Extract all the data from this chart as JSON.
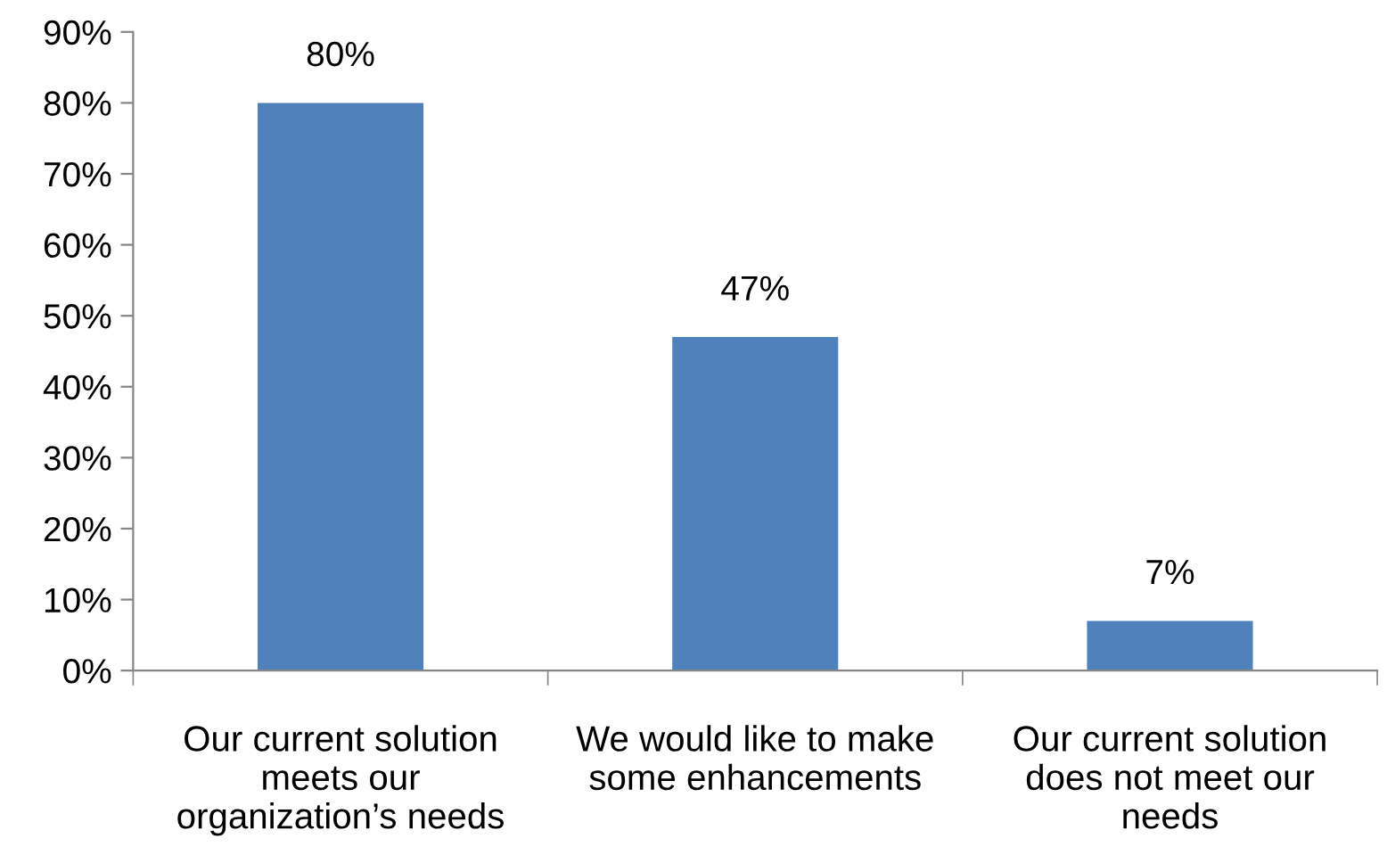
{
  "chart_data": {
    "type": "bar",
    "categories": [
      "Our current solution\nmeets our\norganization’s needs",
      "We would like to make\nsome enhancements",
      "Our current solution\ndoes not meet our\nneeds"
    ],
    "values": [
      80,
      47,
      7
    ],
    "color": "#4f81bd",
    "ylim": [
      0,
      90
    ],
    "yticks": [
      {
        "value": 0,
        "label": "0%"
      },
      {
        "value": 10,
        "label": "10%"
      },
      {
        "value": 20,
        "label": "20%"
      },
      {
        "value": 30,
        "label": "30%"
      },
      {
        "value": 40,
        "label": "40%"
      },
      {
        "value": 50,
        "label": "50%"
      },
      {
        "value": 60,
        "label": "60%"
      },
      {
        "value": 70,
        "label": "70%"
      },
      {
        "value": 80,
        "label": "80%"
      },
      {
        "value": 90,
        "label": "90%"
      }
    ],
    "value_labels": [
      "80%",
      "47%",
      "7%"
    ],
    "grid": false,
    "legend": false
  }
}
